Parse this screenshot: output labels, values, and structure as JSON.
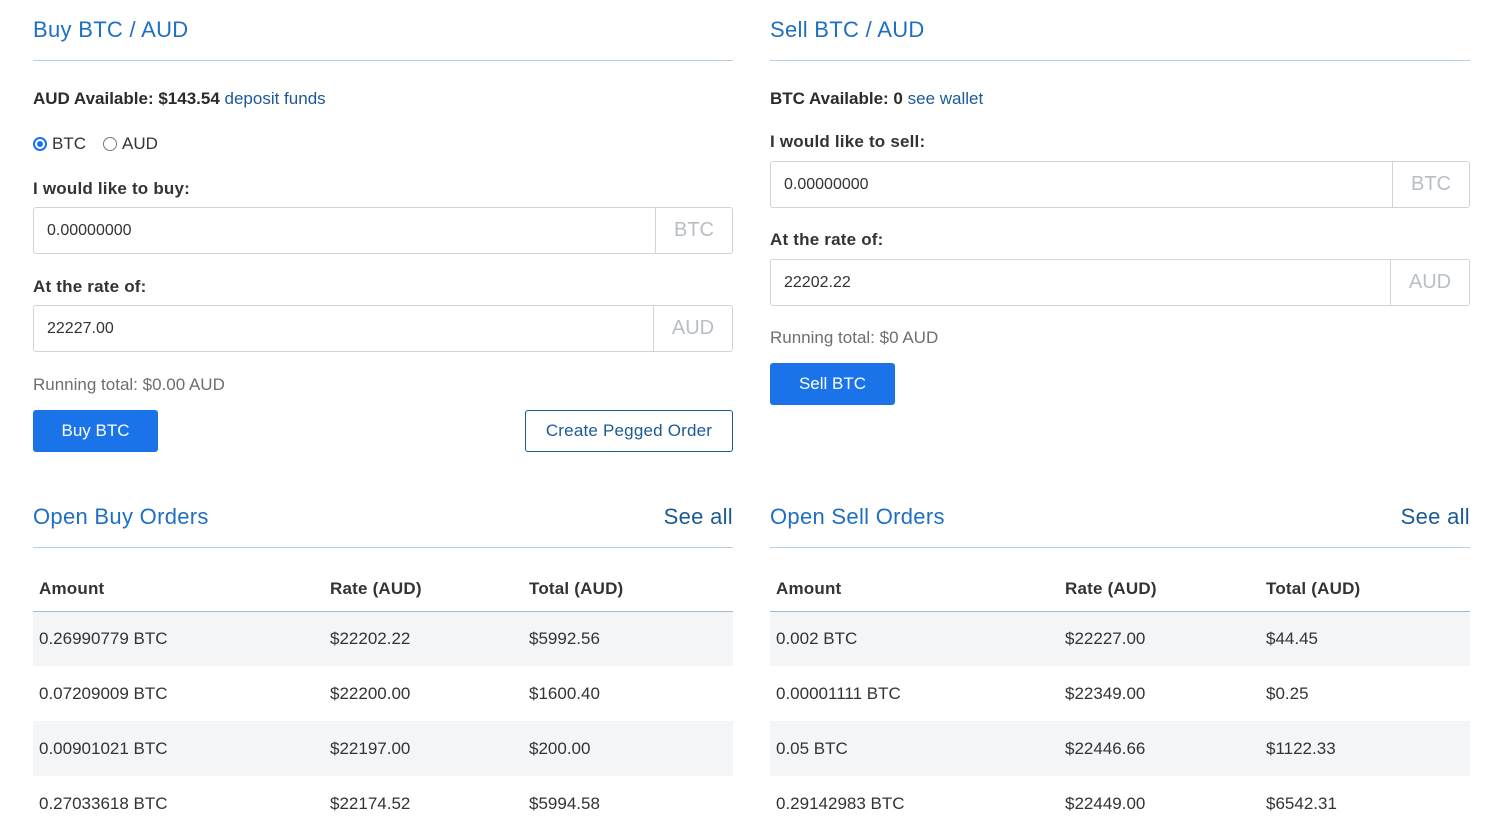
{
  "buy": {
    "title": "Buy BTC / AUD",
    "available_label": "AUD Available: $143.54",
    "available_link": "deposit funds",
    "radio_btc": "BTC",
    "radio_aud": "AUD",
    "amount_label": "I would like to buy:",
    "amount_value": "0.00000000",
    "amount_unit": "BTC",
    "rate_label": "At the rate of:",
    "rate_value": "22227.00",
    "rate_unit": "AUD",
    "running_total": "Running total: $0.00 AUD",
    "button": "Buy BTC",
    "pegged_button": "Create Pegged Order"
  },
  "sell": {
    "title": "Sell BTC / AUD",
    "available_label": "BTC Available: 0",
    "available_link": "see wallet",
    "amount_label": "I would like to sell:",
    "amount_value": "0.00000000",
    "amount_unit": "BTC",
    "rate_label": "At the rate of:",
    "rate_value": "22202.22",
    "rate_unit": "AUD",
    "running_total": "Running total: $0 AUD",
    "button": "Sell BTC"
  },
  "open_buy": {
    "title": "Open Buy Orders",
    "see_all": "See all",
    "columns": [
      "Amount",
      "Rate (AUD)",
      "Total (AUD)"
    ],
    "rows": [
      [
        "0.26990779 BTC",
        "$22202.22",
        "$5992.56"
      ],
      [
        "0.07209009 BTC",
        "$22200.00",
        "$1600.40"
      ],
      [
        "0.00901021 BTC",
        "$22197.00",
        "$200.00"
      ],
      [
        "0.27033618 BTC",
        "$22174.52",
        "$5994.58"
      ]
    ]
  },
  "open_sell": {
    "title": "Open Sell Orders",
    "see_all": "See all",
    "columns": [
      "Amount",
      "Rate (AUD)",
      "Total (AUD)"
    ],
    "rows": [
      [
        "0.002 BTC",
        "$22227.00",
        "$44.45"
      ],
      [
        "0.00001111 BTC",
        "$22349.00",
        "$0.25"
      ],
      [
        "0.05 BTC",
        "$22446.66",
        "$1122.33"
      ],
      [
        "0.29142983 BTC",
        "$22449.00",
        "$6542.31"
      ]
    ]
  },
  "colors": {
    "accent": "#1a73e8",
    "title": "#1e6fc4",
    "link": "#1b5a96"
  }
}
